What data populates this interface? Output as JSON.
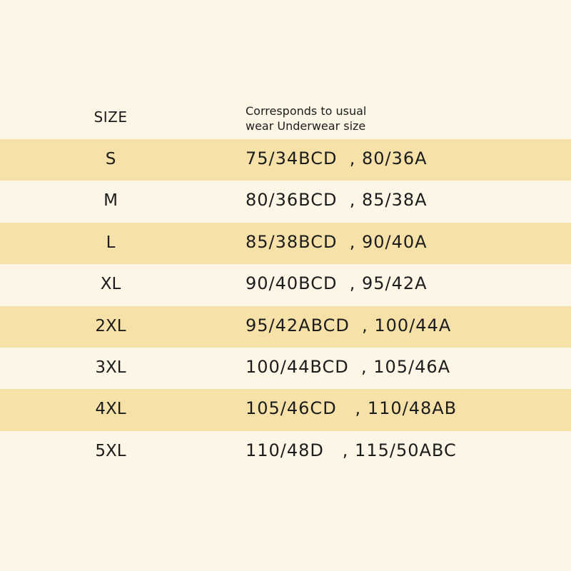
{
  "header": {
    "size": "SIZE",
    "description": "Corresponds to usual\nwear Underwear size",
    "description_line1": "Corresponds to usual",
    "description_line2": "wear Underwear size"
  },
  "colors": {
    "background": "#fdf6e7",
    "band": "#f6e2a9",
    "text": "#1c1c1c"
  },
  "rows": [
    {
      "size": "S",
      "value": "75/34BCD  , 80/36A"
    },
    {
      "size": "M",
      "value": "80/36BCD  , 85/38A"
    },
    {
      "size": "L",
      "value": "85/38BCD  , 90/40A"
    },
    {
      "size": "XL",
      "value": "90/40BCD  , 95/42A"
    },
    {
      "size": "2XL",
      "value": "95/42ABCD  , 100/44A"
    },
    {
      "size": "3XL",
      "value": "100/44BCD  , 105/46A"
    },
    {
      "size": "4XL",
      "value": "105/46CD   , 110/48AB"
    },
    {
      "size": "5XL",
      "value": "110/48D   , 115/50ABC"
    }
  ]
}
